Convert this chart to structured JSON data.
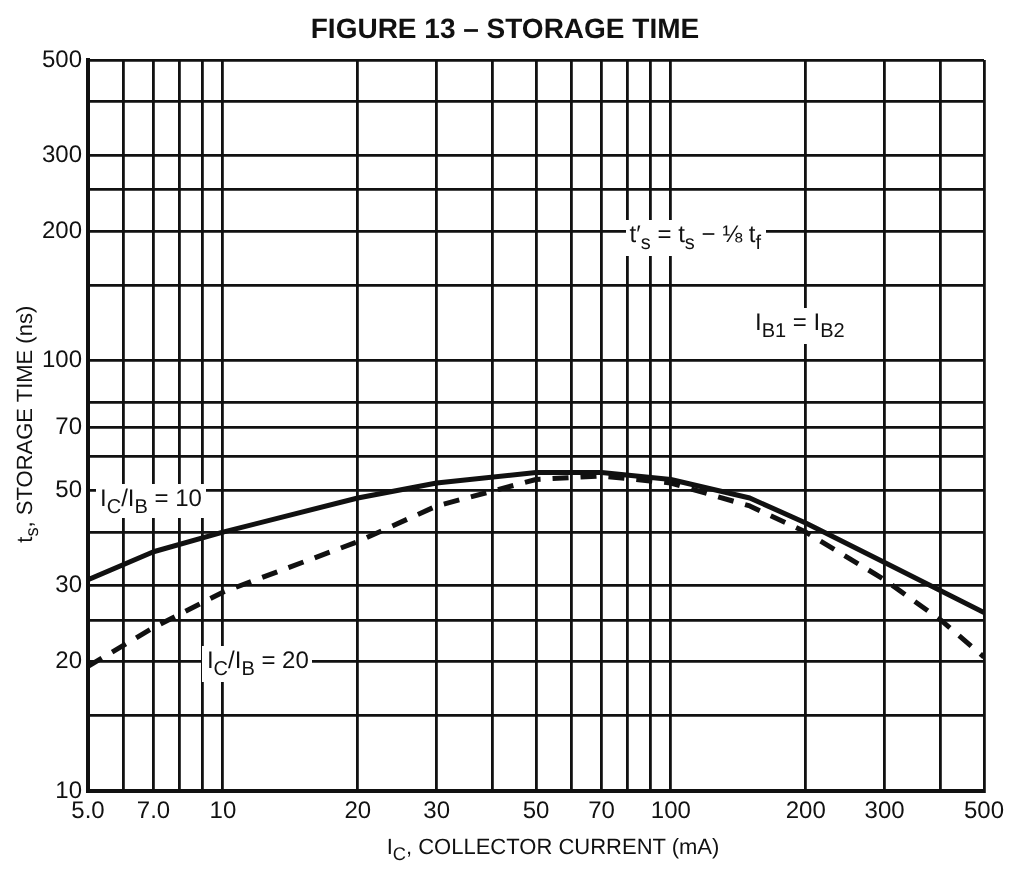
{
  "chart_data": {
    "type": "line",
    "title": "FIGURE 13 – STORAGE TIME",
    "xlabel": "I$_{C}$, COLLECTOR CURRENT (mA)",
    "ylabel": "t$_{s}$, STORAGE TIME (ns)",
    "annotations": [
      "t′$_{s}$ = t$_{s}$ − ⅛ t$_{f}$",
      "I$_{B1}$ = I$_{B2}$"
    ],
    "log": "xy",
    "grid": true,
    "legend": false,
    "marker": "none",
    "xlim": [
      5,
      500
    ],
    "ylim": [
      10,
      500
    ],
    "xticks": [
      {
        "value": 5,
        "label": "5.0"
      },
      {
        "value": 6,
        "label": null
      },
      {
        "value": 7,
        "label": "7.0"
      },
      {
        "value": 8,
        "label": null
      },
      {
        "value": 9,
        "label": null
      },
      10,
      20,
      30,
      {
        "value": 40,
        "label": null
      },
      50,
      {
        "value": 60,
        "label": null
      },
      70,
      {
        "value": 80,
        "label": null
      },
      {
        "value": 90,
        "label": null
      },
      100,
      200,
      300,
      {
        "value": 400,
        "label": null
      },
      500
    ],
    "yticks": [
      10,
      {
        "value": 15,
        "label": null
      },
      20,
      {
        "value": 25,
        "label": null
      },
      30,
      {
        "value": 40,
        "label": null
      },
      50,
      {
        "value": 60,
        "label": null
      },
      70,
      {
        "value": 80,
        "label": null
      },
      100,
      {
        "value": 150,
        "label": null
      },
      200,
      {
        "value": 250,
        "label": null
      },
      300,
      {
        "value": 400,
        "label": null
      },
      500
    ],
    "series": [
      {
        "name": "I$_{C}$/I$_{B}$ = 10",
        "color": "#111111",
        "line_style": "solid",
        "x": [
          5,
          7,
          10,
          20,
          30,
          50,
          70,
          100,
          150,
          200,
          300,
          500
        ],
        "values": [
          31,
          36,
          40,
          48,
          52,
          55,
          55,
          53,
          48,
          42,
          34,
          26
        ]
      },
      {
        "name": "I$_{C}$/I$_{B}$ = 20",
        "color": "#111111",
        "line_style": "dashed",
        "x": [
          5,
          7,
          10,
          20,
          30,
          50,
          70,
          100,
          150,
          200,
          300,
          400,
          500
        ],
        "values": [
          19.5,
          24,
          29,
          38,
          46,
          53,
          54,
          52,
          46,
          40,
          31,
          25,
          20.5
        ]
      }
    ]
  }
}
